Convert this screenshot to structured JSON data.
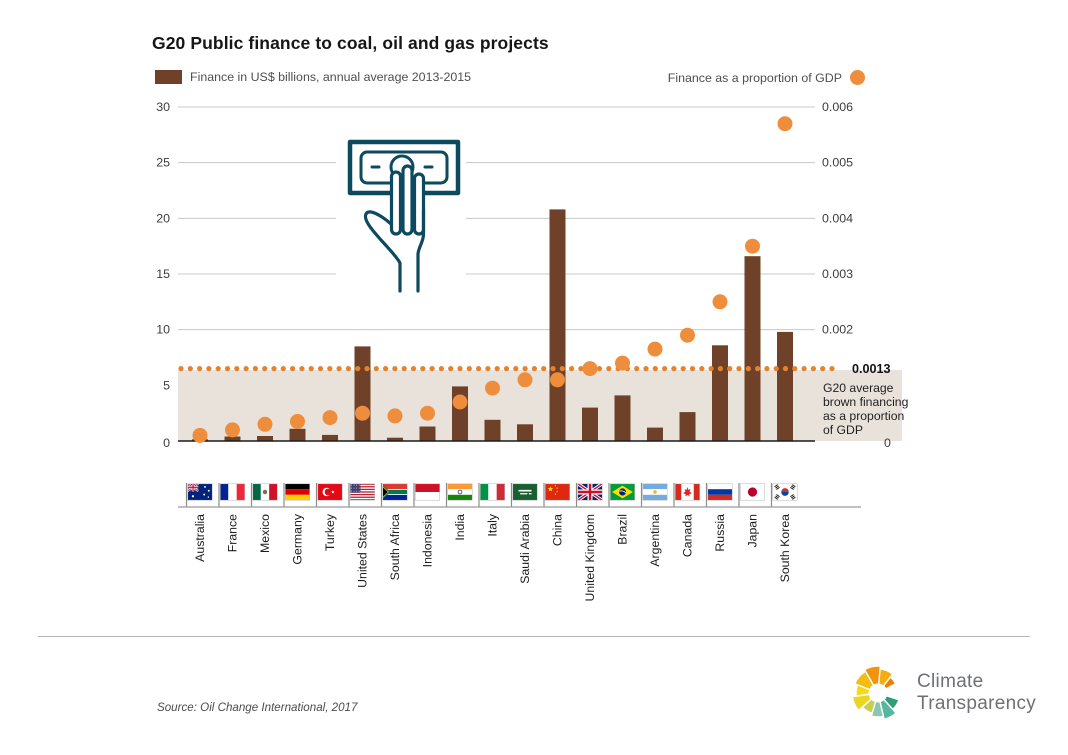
{
  "title": "G20 Public finance to coal, oil and gas projects",
  "legend": {
    "bars_label": "Finance in US$ billions, annual average 2013-2015",
    "dots_label": "Finance as a proportion of GDP"
  },
  "annotation": {
    "value_label": "0.0013",
    "lines": [
      "G20 average",
      "brown financing",
      "as a proportion",
      "of GDP"
    ]
  },
  "source": "Source: Oil Change International, 2017",
  "logo": {
    "icon": "pinwheel",
    "line1": "Climate",
    "line2": "Transparency"
  },
  "icons": {
    "chart_center_icon": "money-hand"
  },
  "colors": {
    "bar": "#6e4128",
    "dot": "#ee8e3c",
    "dotted_line": "#e5832d",
    "band": "#e9e2da",
    "grid": "#c8c8c8",
    "axis_text": "#3c3c3c",
    "icon_ink": "#0e4a5f"
  },
  "chart_data": {
    "type": "bar+scatter",
    "title": "G20 Public finance to coal, oil and gas projects",
    "categories": [
      "Australia",
      "France",
      "Mexico",
      "Germany",
      "Turkey",
      "United States",
      "South Africa",
      "Indonesia",
      "India",
      "Italy",
      "Saudi Arabia",
      "China",
      "United Kingdom",
      "Brazil",
      "Argentina",
      "Canada",
      "Russia",
      "Japan",
      "South Korea"
    ],
    "flags": [
      "au",
      "fr",
      "mx",
      "de",
      "tr",
      "us",
      "za",
      "id",
      "in",
      "it",
      "sa",
      "cn",
      "gb",
      "br",
      "ar",
      "ca",
      "ru",
      "jp",
      "kr"
    ],
    "series": [
      {
        "name": "Finance in US$ billions, annual average 2013-2015",
        "type": "bar",
        "values": [
          0.15,
          0.4,
          0.45,
          1.1,
          0.55,
          8.5,
          0.3,
          1.3,
          4.9,
          1.9,
          1.5,
          20.8,
          3.0,
          4.1,
          1.2,
          2.6,
          8.6,
          16.6,
          9.8
        ]
      },
      {
        "name": "Finance as a proportion of GDP",
        "type": "scatter",
        "values": [
          0.0001,
          0.0002,
          0.0003,
          0.00035,
          0.00042,
          0.0005,
          0.00045,
          0.0005,
          0.0007,
          0.00095,
          0.0011,
          0.0011,
          0.0013,
          0.0014,
          0.00165,
          0.0019,
          0.0025,
          0.0035,
          0.0057
        ]
      }
    ],
    "left_axis": {
      "ticks": [
        0,
        5,
        10,
        15,
        20,
        25,
        30
      ],
      "max": 30
    },
    "right_axis": {
      "ticks": [
        {
          "value": 0.002,
          "label": "0.002"
        },
        {
          "value": 0.003,
          "label": "0.003"
        },
        {
          "value": 0.004,
          "label": "0.004"
        },
        {
          "value": 0.005,
          "label": "0.005"
        },
        {
          "value": 0.006,
          "label": "0.006"
        }
      ],
      "zero_label": "0",
      "max": 0.006
    },
    "reference_line": {
      "value": 0.0013,
      "label": "0.0013"
    },
    "grid": true,
    "legend_position": "top"
  }
}
